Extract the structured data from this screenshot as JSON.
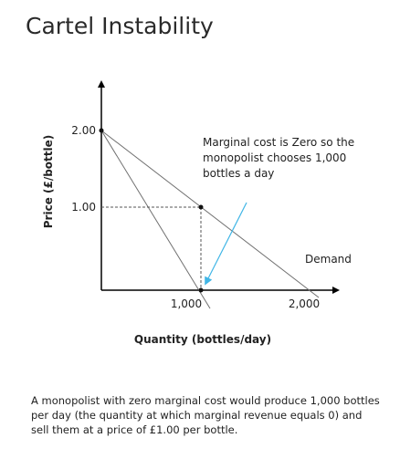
{
  "slide": {
    "title": "Cartel Instability"
  },
  "diagram": {
    "y_axis_label": "Price (£/bottle)",
    "x_axis_label": "Quantity (bottles/day)",
    "y_ticks": [
      "2.00",
      "1.00"
    ],
    "x_ticks": [
      "1,000",
      "2,000"
    ],
    "annotation_lines": [
      "Marginal cost is Zero so the",
      "monopolist chooses 1,000",
      "bottles a day"
    ],
    "demand_label": "Demand",
    "colors": {
      "axis": "#000000",
      "curve": "#707070",
      "guide": "#555555",
      "arrow": "#41b6e6",
      "point": "#111111"
    }
  },
  "caption": {
    "text": "A monopolist with zero marginal cost would produce 1,000 bottles per day (the quantity at which marginal revenue equals 0) and sell them at a price of £1.00 per bottle."
  }
}
